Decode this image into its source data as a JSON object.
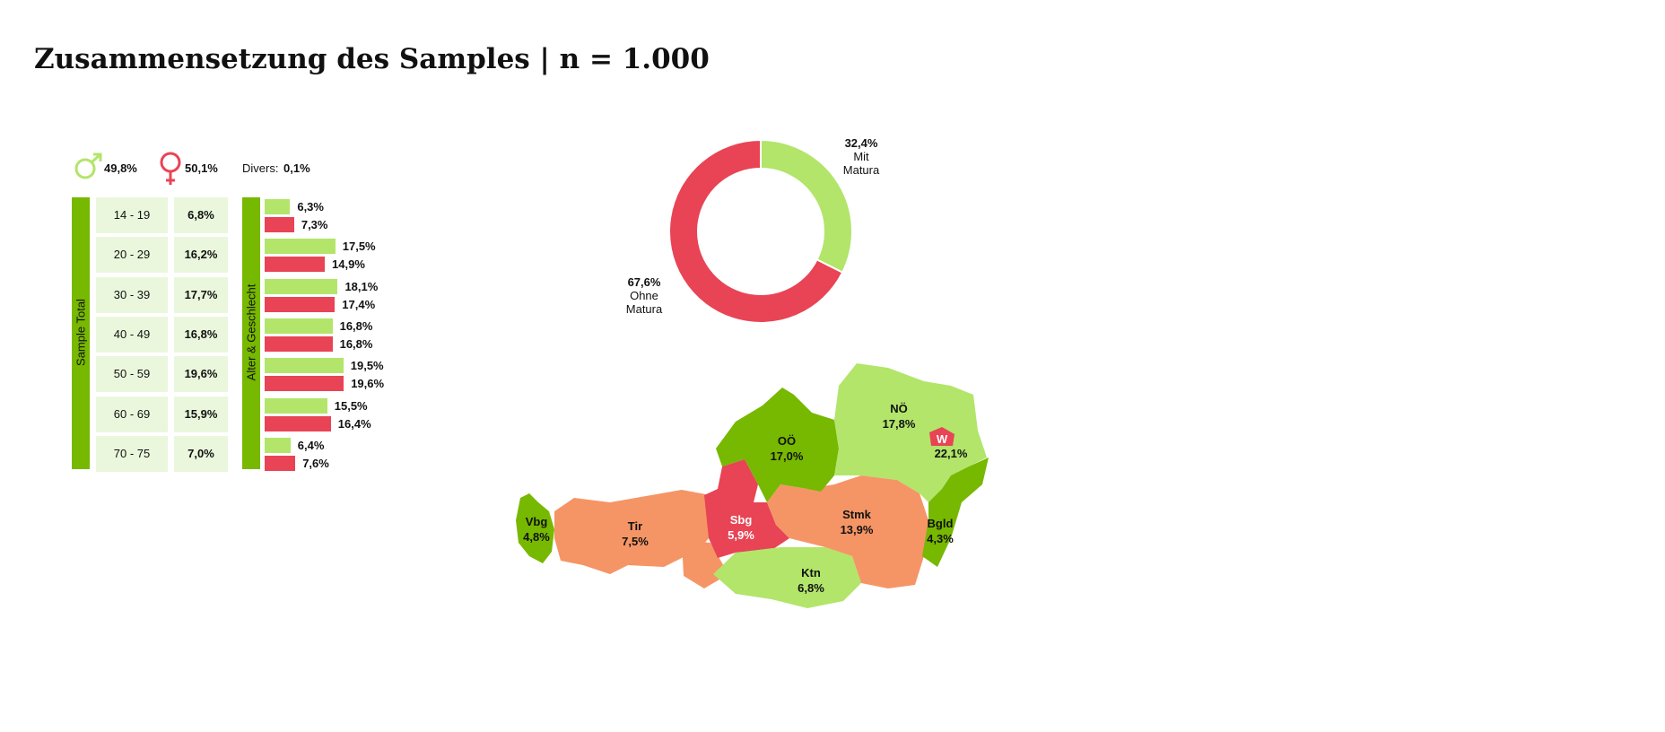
{
  "title": "Zusammensetzung des Samples | n = 1.000",
  "colors": {
    "male": "#b2e56a",
    "female": "#e84455",
    "dark_green": "#77b800",
    "cell_bg": "#eaf7dc",
    "orange": "#f59565"
  },
  "gender": {
    "male_icon": "male-symbol-icon",
    "male": "49,8%",
    "female_icon": "female-symbol-icon",
    "female": "50,1%",
    "divers_label": "Divers:",
    "divers": "0,1%"
  },
  "sample_total_label": "Sample Total",
  "alter_label": "Alter & Geschlecht",
  "chart_data": [
    {
      "type": "table",
      "title": "Sample Total",
      "rows": [
        {
          "age": "14 - 19",
          "total": "6,8%",
          "male": 6.3,
          "female": 7.3,
          "male_label": "6,3%",
          "female_label": "7,3%"
        },
        {
          "age": "20 - 29",
          "total": "16,2%",
          "male": 17.5,
          "female": 14.9,
          "male_label": "17,5%",
          "female_label": "14,9%"
        },
        {
          "age": "30 - 39",
          "total": "17,7%",
          "male": 18.1,
          "female": 17.4,
          "male_label": "18,1%",
          "female_label": "17,4%"
        },
        {
          "age": "40 - 49",
          "total": "16,8%",
          "male": 16.8,
          "female": 16.8,
          "male_label": "16,8%",
          "female_label": "16,8%"
        },
        {
          "age": "50 - 59",
          "total": "19,6%",
          "male": 19.5,
          "female": 19.6,
          "male_label": "19,5%",
          "female_label": "19,6%"
        },
        {
          "age": "60 - 69",
          "total": "15,9%",
          "male": 15.5,
          "female": 16.4,
          "male_label": "15,5%",
          "female_label": "16,4%"
        },
        {
          "age": "70 - 75",
          "total": "7,0%",
          "male": 6.4,
          "female": 7.6,
          "male_label": "6,4%",
          "female_label": "7,6%"
        }
      ]
    },
    {
      "type": "pie",
      "subtype": "donut",
      "slices": [
        {
          "label_value": "32,4%",
          "label_line1": "Mit",
          "label_line2": "Matura",
          "value": 32.4,
          "color": "#b2e56a"
        },
        {
          "label_value": "67,6%",
          "label_line1": "Ohne",
          "label_line2": "Matura",
          "value": 67.6,
          "color": "#e84455"
        }
      ]
    },
    {
      "type": "map",
      "regions": [
        {
          "name": "Vbg",
          "value": "4,8%",
          "color": "#77b800"
        },
        {
          "name": "Tir",
          "value": "7,5%",
          "color": "#f59565"
        },
        {
          "name": "Sbg",
          "value": "5,9%",
          "color": "#e84455"
        },
        {
          "name": "OÖ",
          "value": "17,0%",
          "color": "#77b800"
        },
        {
          "name": "NÖ",
          "value": "17,8%",
          "color": "#b2e56a"
        },
        {
          "name": "W",
          "value": "22,1%",
          "color": "#e84455"
        },
        {
          "name": "Stmk",
          "value": "13,9%",
          "color": "#f59565"
        },
        {
          "name": "Ktn",
          "value": "6,8%",
          "color": "#b2e56a"
        },
        {
          "name": "Bgld",
          "value": "4,3%",
          "color": "#77b800"
        }
      ]
    }
  ]
}
